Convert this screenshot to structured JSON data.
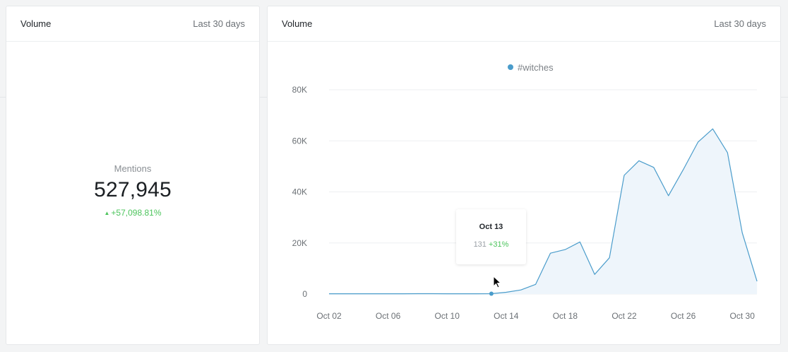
{
  "left_card": {
    "title": "Volume",
    "range": "Last 30 days",
    "metric_label": "Mentions",
    "metric_value": "527,945",
    "metric_change": "+57,098.81%"
  },
  "right_card": {
    "title": "Volume",
    "range": "Last 30 days"
  },
  "tooltip": {
    "date": "Oct 13",
    "value": "131",
    "change": "+31%"
  },
  "colors": {
    "line": "#4a9ccb",
    "area": "#eef5fb",
    "positive": "#4cc45c",
    "grid": "#edeff1"
  },
  "chart_data": {
    "type": "area",
    "legend": "top-center",
    "series": [
      {
        "name": "#witches",
        "x": [
          "Oct 02",
          "Oct 03",
          "Oct 04",
          "Oct 05",
          "Oct 06",
          "Oct 07",
          "Oct 08",
          "Oct 09",
          "Oct 10",
          "Oct 11",
          "Oct 12",
          "Oct 13",
          "Oct 14",
          "Oct 15",
          "Oct 16",
          "Oct 17",
          "Oct 18",
          "Oct 19",
          "Oct 20",
          "Oct 21",
          "Oct 22",
          "Oct 23",
          "Oct 24",
          "Oct 25",
          "Oct 26",
          "Oct 27",
          "Oct 28",
          "Oct 29",
          "Oct 30",
          "Oct 31"
        ],
        "values": [
          100,
          110,
          105,
          120,
          115,
          110,
          125,
          130,
          120,
          110,
          100,
          131,
          700,
          1600,
          3800,
          16000,
          17400,
          20400,
          7700,
          14200,
          46500,
          52200,
          49600,
          38500,
          48700,
          59500,
          64700,
          55400,
          24000,
          5000
        ]
      }
    ],
    "x_ticks": [
      "Oct 02",
      "Oct 06",
      "Oct 10",
      "Oct 14",
      "Oct 18",
      "Oct 22",
      "Oct 26",
      "Oct 30"
    ],
    "y_ticks": [
      "0",
      "20K",
      "40K",
      "60K",
      "80K"
    ],
    "ylim": [
      0,
      80000
    ],
    "highlight_index": 11,
    "grid": true
  }
}
